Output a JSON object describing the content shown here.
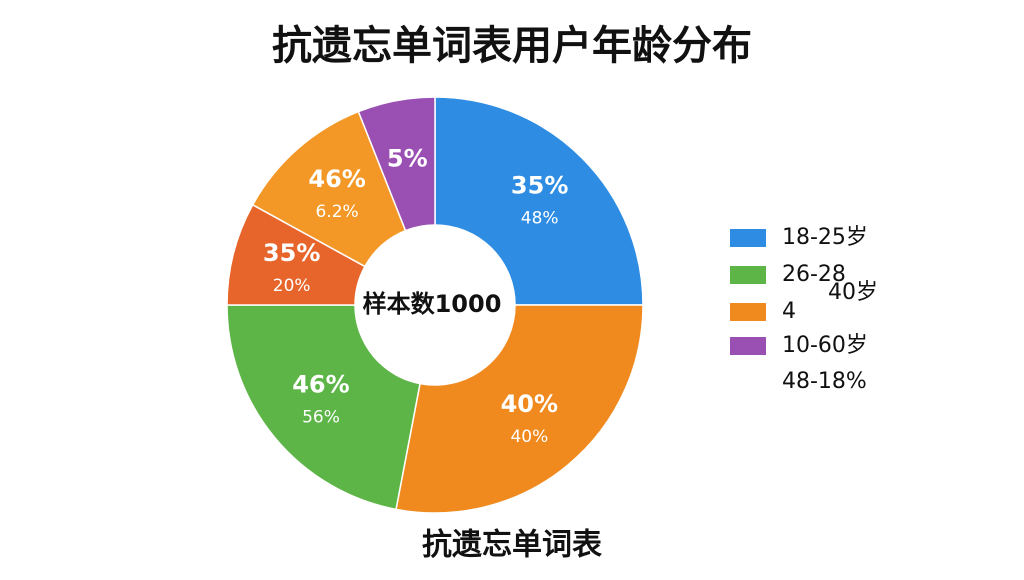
{
  "chart_data": {
    "type": "donut",
    "title": "抗遗忘单词表用户年龄分布",
    "center_text": "样本数1000",
    "caption": "抗遗忘单词表",
    "values": [
      25,
      28,
      22,
      8,
      11,
      6
    ],
    "colors": [
      "#2e8de3",
      "#f08a1e",
      "#5cb546",
      "#e7652b",
      "#f39826",
      "#9a4fb2"
    ],
    "slice_labels": [
      [
        "35%",
        "48%"
      ],
      [
        "40%",
        "40%"
      ],
      [
        "46%",
        "56%"
      ],
      [
        "35%",
        "20%"
      ],
      [
        "46%",
        "6.2%"
      ],
      [
        "5%"
      ]
    ],
    "legend": [
      {
        "name": "18-25岁",
        "color": "#2e8de3"
      },
      {
        "name": "26-28",
        "color": "#5cb546"
      },
      {
        "name": "4",
        "color": "#f08a1e"
      },
      {
        "name": "10-60岁",
        "color": "#9a4fb2"
      }
    ],
    "legend_notes": [
      "40岁",
      "48-18%"
    ]
  }
}
